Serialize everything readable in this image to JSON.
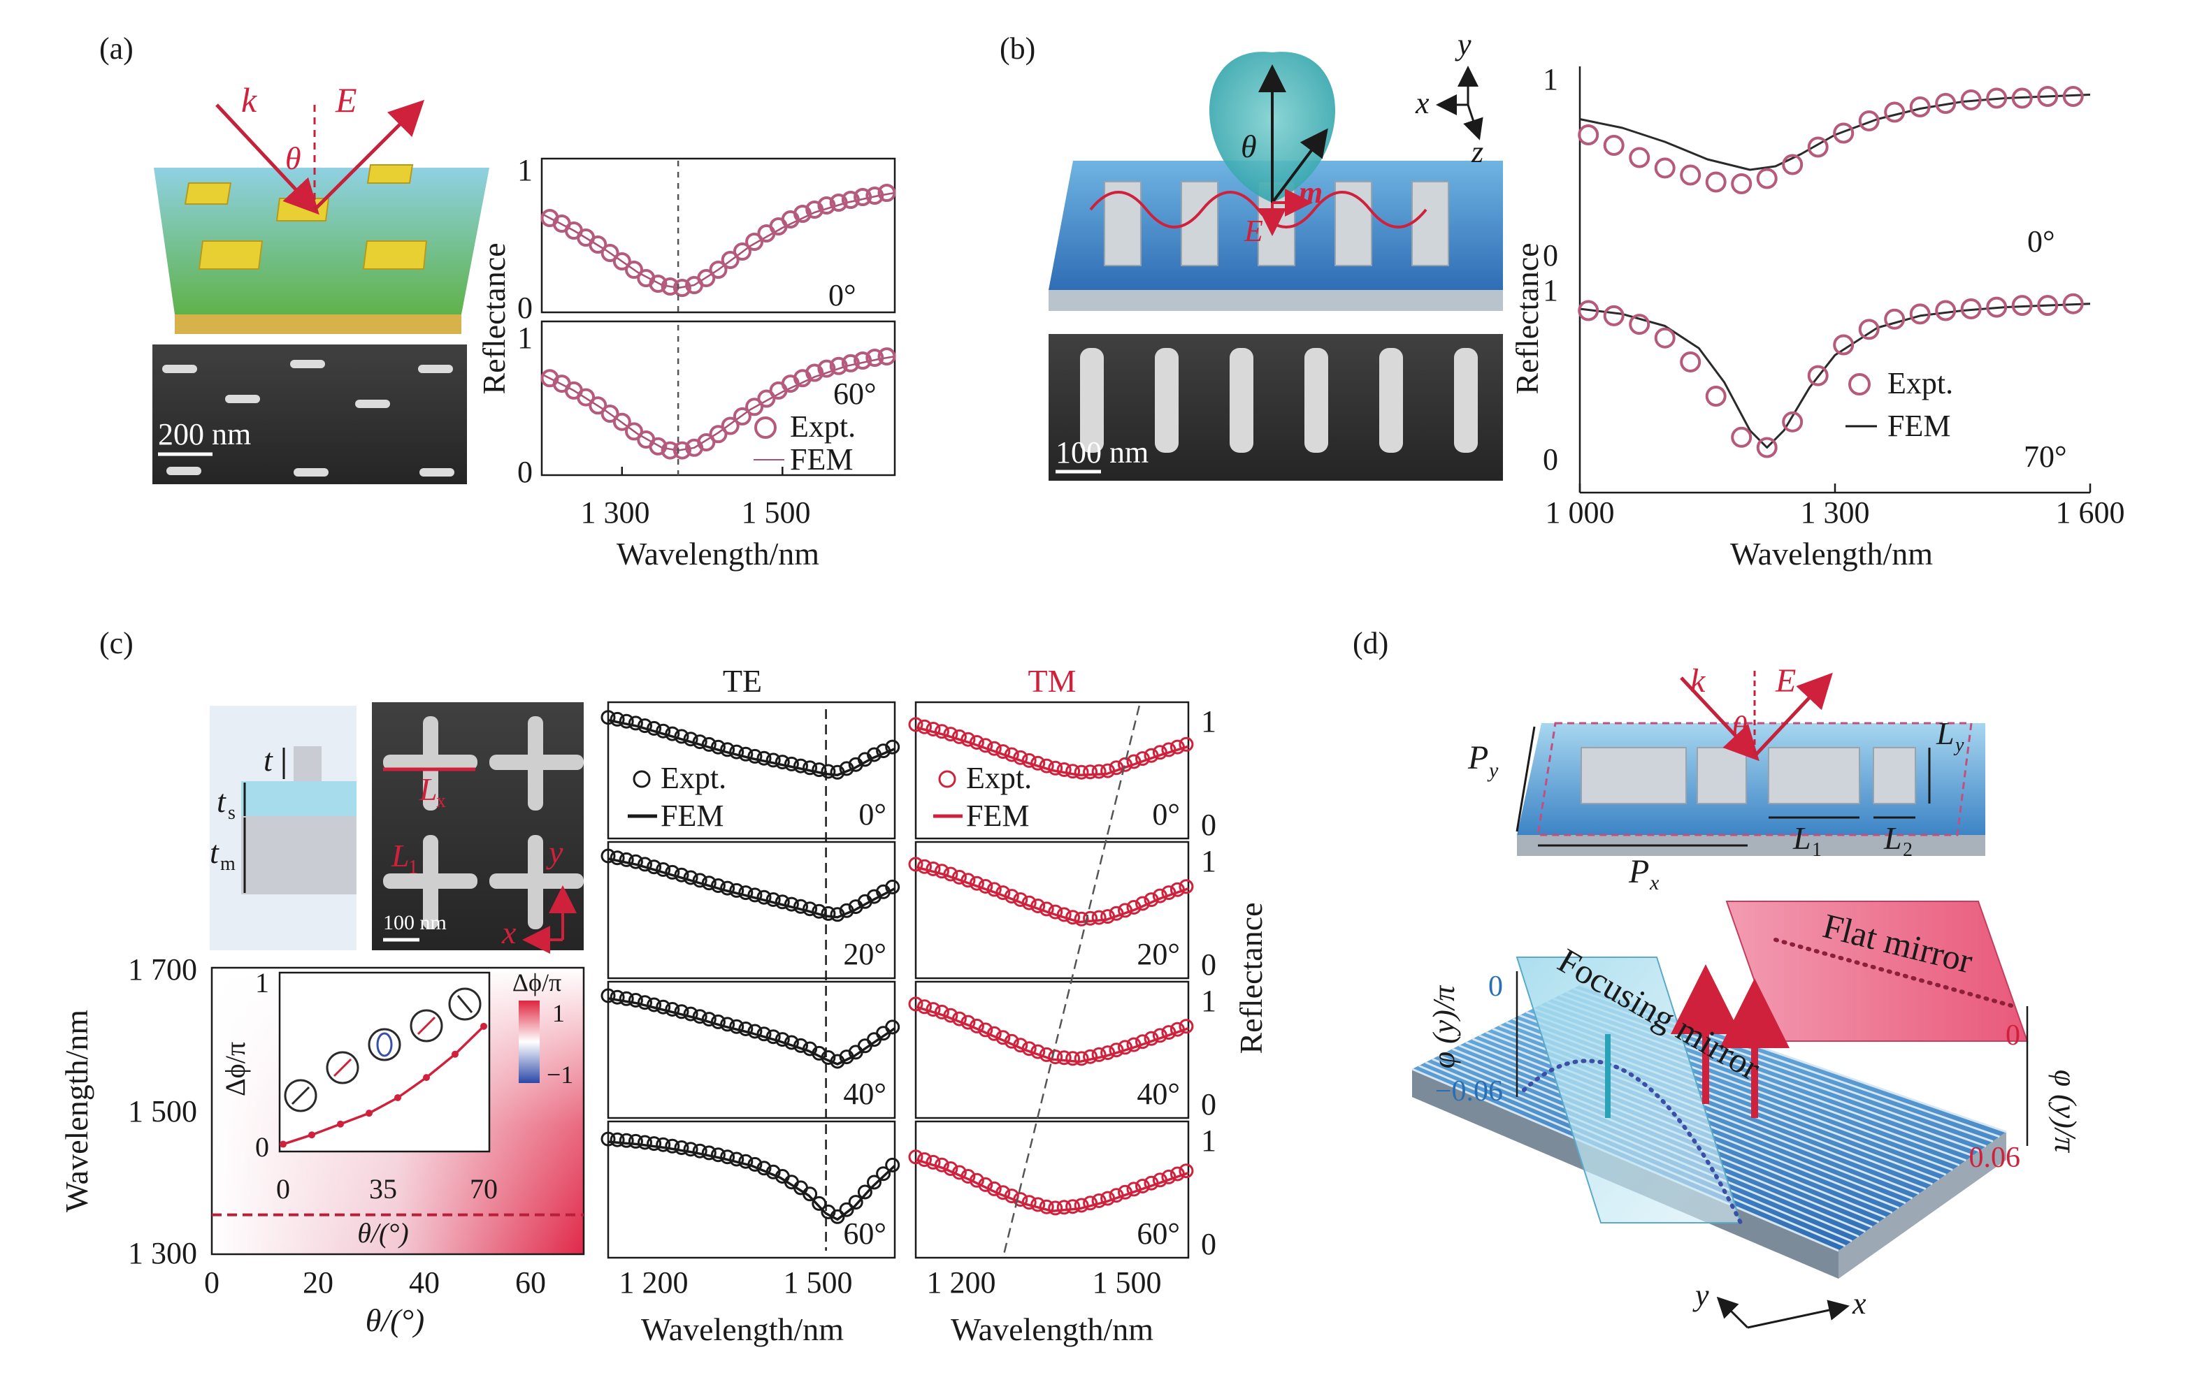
{
  "panels": {
    "a": {
      "label": "(a)",
      "diagram_labels": {
        "k": "k",
        "E": "E",
        "theta": "θ"
      },
      "sem_scale": "200 nm"
    },
    "b": {
      "label": "(b)",
      "diagram_labels": {
        "theta": "θ",
        "m": "m",
        "E": "E"
      },
      "axes_labels": {
        "x": "x",
        "y": "y",
        "z": "z"
      },
      "sem_scale": "100 nm"
    },
    "c": {
      "label": "(c)",
      "schematic_labels": {
        "t": "t",
        "ts": "t",
        "ts_sub": "s",
        "tm": "t",
        "tm_sub": "m"
      },
      "sem_labels": {
        "Lx": "L",
        "Lx_sub": "x",
        "L1": "L",
        "L1_sub": "1",
        "x": "x",
        "y": "y"
      },
      "sem_scale": "100 nm",
      "te_title": "TE",
      "tm_title": "TM",
      "colorbar": {
        "title": "Δϕ/π",
        "max": "1",
        "min": "−1"
      }
    },
    "d": {
      "label": "(d)",
      "diagram_labels": {
        "k": "k",
        "E": "E",
        "theta": "θ",
        "Py": "P",
        "Py_sub": "y",
        "Px": "P",
        "Px_sub": "x",
        "Ly": "L",
        "Ly_sub": "y",
        "L1": "L",
        "L1_sub": "1",
        "L2": "L",
        "L2_sub": "2"
      },
      "flat_mirror": "Flat mirror",
      "focusing_mirror": "Focusing mirror",
      "phi_axis_left": "φ (y)/π",
      "phi_axis_right": "φ (y)/π",
      "left_ticks": [
        "0",
        "−0.06"
      ],
      "right_ticks": [
        "0",
        "0.06"
      ],
      "xy_labels": {
        "x": "x",
        "y": "y"
      }
    }
  },
  "colors": {
    "data_red": "#d0213c",
    "circle_marker": "#b55a7a",
    "fem_line": "#a8506e",
    "dark": "#1a1a1a"
  },
  "chart_data": [
    {
      "id": "a-reflectance",
      "type": "line",
      "panel": "(a)",
      "xlabel": "Wavelength/nm",
      "ylabel": "Reflectance",
      "xlim": [
        1200,
        1640
      ],
      "xticks": [
        1300,
        1500
      ],
      "xtick_labels": [
        "1 300",
        "1 500"
      ],
      "subplots": [
        {
          "angle": "0°",
          "ylim": [
            0,
            1
          ],
          "yticks": [
            "0",
            "1"
          ],
          "expt": {
            "x": [
              1210,
              1225,
              1240,
              1255,
              1270,
              1285,
              1300,
              1315,
              1330,
              1345,
              1360,
              1375,
              1390,
              1405,
              1420,
              1435,
              1450,
              1465,
              1480,
              1495,
              1510,
              1525,
              1540,
              1555,
              1570,
              1585,
              1600,
              1615,
              1630
            ],
            "y": [
              0.64,
              0.6,
              0.55,
              0.5,
              0.45,
              0.39,
              0.33,
              0.27,
              0.21,
              0.17,
              0.15,
              0.14,
              0.16,
              0.21,
              0.27,
              0.34,
              0.4,
              0.47,
              0.53,
              0.58,
              0.63,
              0.67,
              0.7,
              0.73,
              0.75,
              0.77,
              0.79,
              0.8,
              0.82
            ]
          },
          "fem": {
            "x": [
              1200,
              1240,
              1280,
              1320,
              1350,
              1370,
              1390,
              1420,
              1460,
              1500,
              1540,
              1580,
              1620,
              1640
            ],
            "y": [
              0.67,
              0.55,
              0.41,
              0.25,
              0.16,
              0.14,
              0.16,
              0.27,
              0.44,
              0.57,
              0.68,
              0.75,
              0.8,
              0.82
            ]
          },
          "marker_x": 1370
        },
        {
          "angle": "60°",
          "ylim": [
            0,
            1
          ],
          "yticks": [
            "0",
            "1"
          ],
          "expt": {
            "x": [
              1210,
              1225,
              1240,
              1255,
              1270,
              1285,
              1300,
              1315,
              1330,
              1345,
              1360,
              1375,
              1390,
              1405,
              1420,
              1435,
              1450,
              1465,
              1480,
              1495,
              1510,
              1525,
              1540,
              1555,
              1570,
              1585,
              1600,
              1615,
              1630
            ],
            "y": [
              0.66,
              0.62,
              0.57,
              0.52,
              0.46,
              0.4,
              0.34,
              0.27,
              0.21,
              0.16,
              0.13,
              0.13,
              0.15,
              0.19,
              0.25,
              0.31,
              0.38,
              0.45,
              0.51,
              0.57,
              0.62,
              0.66,
              0.7,
              0.73,
              0.75,
              0.77,
              0.79,
              0.81,
              0.82
            ]
          },
          "fem": {
            "x": [
              1200,
              1240,
              1280,
              1320,
              1350,
              1370,
              1390,
              1420,
              1460,
              1500,
              1540,
              1580,
              1620,
              1640
            ],
            "y": [
              0.69,
              0.57,
              0.42,
              0.25,
              0.15,
              0.13,
              0.15,
              0.26,
              0.43,
              0.56,
              0.67,
              0.75,
              0.8,
              0.82
            ]
          },
          "marker_x": 1370
        }
      ],
      "legend": [
        "Expt.",
        "FEM"
      ]
    },
    {
      "id": "b-reflectance",
      "type": "line",
      "panel": "(b)",
      "xlabel": "Wavelength/nm",
      "ylabel": "Reflectance",
      "xlim": [
        1000,
        1600
      ],
      "xticks": [
        1000,
        1300,
        1600
      ],
      "xtick_labels": [
        "1 000",
        "1 300",
        "1 600"
      ],
      "subplots": [
        {
          "angle": "0°",
          "ylim": [
            0,
            1
          ],
          "yticks": [
            "0",
            "1"
          ],
          "expt": {
            "x": [
              1010,
              1040,
              1070,
              1100,
              1130,
              1160,
              1190,
              1220,
              1250,
              1280,
              1310,
              1340,
              1370,
              1400,
              1430,
              1460,
              1490,
              1520,
              1550,
              1580
            ],
            "y": [
              0.7,
              0.64,
              0.57,
              0.51,
              0.47,
              0.43,
              0.42,
              0.45,
              0.53,
              0.63,
              0.71,
              0.78,
              0.83,
              0.86,
              0.88,
              0.9,
              0.91,
              0.91,
              0.92,
              0.92
            ]
          },
          "fem": {
            "x": [
              1000,
              1050,
              1100,
              1150,
              1200,
              1230,
              1260,
              1300,
              1350,
              1400,
              1450,
              1500,
              1550,
              1600
            ],
            "y": [
              0.79,
              0.74,
              0.66,
              0.56,
              0.5,
              0.52,
              0.59,
              0.7,
              0.79,
              0.85,
              0.89,
              0.91,
              0.92,
              0.93
            ]
          }
        },
        {
          "angle": "70°",
          "ylim": [
            0,
            1
          ],
          "yticks": [
            "0",
            "1"
          ],
          "expt": {
            "x": [
              1010,
              1040,
              1070,
              1100,
              1130,
              1160,
              1190,
              1220,
              1250,
              1280,
              1310,
              1340,
              1370,
              1400,
              1430,
              1460,
              1490,
              1520,
              1550,
              1580
            ],
            "y": [
              0.9,
              0.87,
              0.82,
              0.74,
              0.6,
              0.4,
              0.16,
              0.1,
              0.25,
              0.52,
              0.7,
              0.79,
              0.85,
              0.88,
              0.9,
              0.91,
              0.92,
              0.93,
              0.93,
              0.94
            ]
          },
          "fem": {
            "x": [
              1000,
              1050,
              1100,
              1140,
              1170,
              1200,
              1220,
              1240,
              1270,
              1300,
              1350,
              1400,
              1450,
              1500,
              1550,
              1600
            ],
            "y": [
              0.91,
              0.88,
              0.81,
              0.68,
              0.48,
              0.2,
              0.1,
              0.2,
              0.45,
              0.64,
              0.8,
              0.87,
              0.9,
              0.92,
              0.93,
              0.94
            ]
          }
        }
      ],
      "legend": [
        "Expt.",
        "FEM"
      ]
    },
    {
      "id": "c-colormap",
      "type": "heatmap",
      "panel": "(c)",
      "xlabel": "θ/(°)",
      "ylabel": "Wavelength/nm",
      "xlim": [
        0,
        70
      ],
      "ylim": [
        1300,
        1700
      ],
      "xticks": [
        "0",
        "20",
        "40",
        "60"
      ],
      "yticks": [
        "1 300",
        "1 500",
        "1 700"
      ],
      "dashed_line_y": 1355,
      "inset": {
        "xlabel": "θ/(°)",
        "ylabel": "Δϕ/π",
        "xticks": [
          "0",
          "35",
          "70"
        ],
        "yticks": [
          "0",
          "1"
        ],
        "x": [
          0,
          10,
          20,
          30,
          40,
          50,
          60,
          70
        ],
        "y": [
          0.02,
          0.08,
          0.15,
          0.22,
          0.32,
          0.45,
          0.6,
          0.78
        ]
      }
    },
    {
      "id": "c-te",
      "type": "line",
      "panel": "(c) TE",
      "title": "TE",
      "xlabel": "Wavelength/nm",
      "xlim": [
        1100,
        1600
      ],
      "xtick_labels": [
        "1 200",
        "1 500"
      ],
      "legend": [
        "Expt.",
        "FEM"
      ],
      "angles": [
        "0°",
        "20°",
        "40°",
        "60°"
      ],
      "curves": [
        {
          "x": [
            1100,
            1150,
            1200,
            1250,
            1300,
            1350,
            1400,
            1450,
            1480,
            1500,
            1530,
            1560,
            1600
          ],
          "y": [
            0.92,
            0.87,
            0.8,
            0.73,
            0.66,
            0.6,
            0.55,
            0.5,
            0.47,
            0.46,
            0.52,
            0.6,
            0.68
          ]
        },
        {
          "x": [
            1100,
            1150,
            1200,
            1250,
            1300,
            1350,
            1400,
            1450,
            1480,
            1500,
            1530,
            1560,
            1600
          ],
          "y": [
            0.93,
            0.88,
            0.81,
            0.74,
            0.67,
            0.61,
            0.55,
            0.49,
            0.45,
            0.44,
            0.5,
            0.58,
            0.68
          ]
        },
        {
          "x": [
            1100,
            1150,
            1200,
            1250,
            1300,
            1350,
            1400,
            1450,
            1480,
            1500,
            1530,
            1560,
            1600
          ],
          "y": [
            0.93,
            0.89,
            0.83,
            0.77,
            0.7,
            0.64,
            0.57,
            0.49,
            0.42,
            0.38,
            0.45,
            0.55,
            0.68
          ]
        },
        {
          "x": [
            1100,
            1150,
            1200,
            1250,
            1300,
            1350,
            1400,
            1450,
            1480,
            1500,
            1530,
            1560,
            1600
          ],
          "y": [
            0.9,
            0.88,
            0.85,
            0.81,
            0.76,
            0.7,
            0.6,
            0.45,
            0.3,
            0.25,
            0.36,
            0.52,
            0.7
          ]
        }
      ],
      "dip_marker_x": 1480
    },
    {
      "id": "c-tm",
      "type": "line",
      "panel": "(c) TM",
      "title": "TM",
      "xlabel": "Wavelength/nm",
      "ylabel": "Reflectance",
      "xlim": [
        1100,
        1600
      ],
      "xtick_labels": [
        "1 200",
        "1 500"
      ],
      "legend": [
        "Expt.",
        "FEM"
      ],
      "angles": [
        "0°",
        "20°",
        "40°",
        "60°"
      ],
      "yticks": [
        "0",
        "1"
      ],
      "curves": [
        {
          "x": [
            1100,
            1150,
            1200,
            1250,
            1300,
            1350,
            1400,
            1450,
            1500,
            1550,
            1600
          ],
          "y": [
            0.86,
            0.8,
            0.73,
            0.65,
            0.57,
            0.5,
            0.46,
            0.47,
            0.55,
            0.63,
            0.7
          ]
        },
        {
          "x": [
            1100,
            1150,
            1200,
            1250,
            1300,
            1350,
            1400,
            1450,
            1500,
            1550,
            1600
          ],
          "y": [
            0.86,
            0.8,
            0.72,
            0.64,
            0.55,
            0.47,
            0.4,
            0.42,
            0.5,
            0.6,
            0.68
          ]
        },
        {
          "x": [
            1100,
            1150,
            1200,
            1250,
            1300,
            1350,
            1400,
            1450,
            1500,
            1550,
            1600
          ],
          "y": [
            0.86,
            0.79,
            0.7,
            0.6,
            0.5,
            0.42,
            0.4,
            0.45,
            0.52,
            0.6,
            0.68
          ]
        },
        {
          "x": [
            1100,
            1150,
            1200,
            1250,
            1300,
            1350,
            1400,
            1450,
            1500,
            1550,
            1600
          ],
          "y": [
            0.75,
            0.68,
            0.58,
            0.47,
            0.38,
            0.32,
            0.34,
            0.4,
            0.48,
            0.56,
            0.64
          ]
        }
      ],
      "dip_marker_x": [
        1450,
        1410,
        1370,
        1320
      ]
    }
  ]
}
